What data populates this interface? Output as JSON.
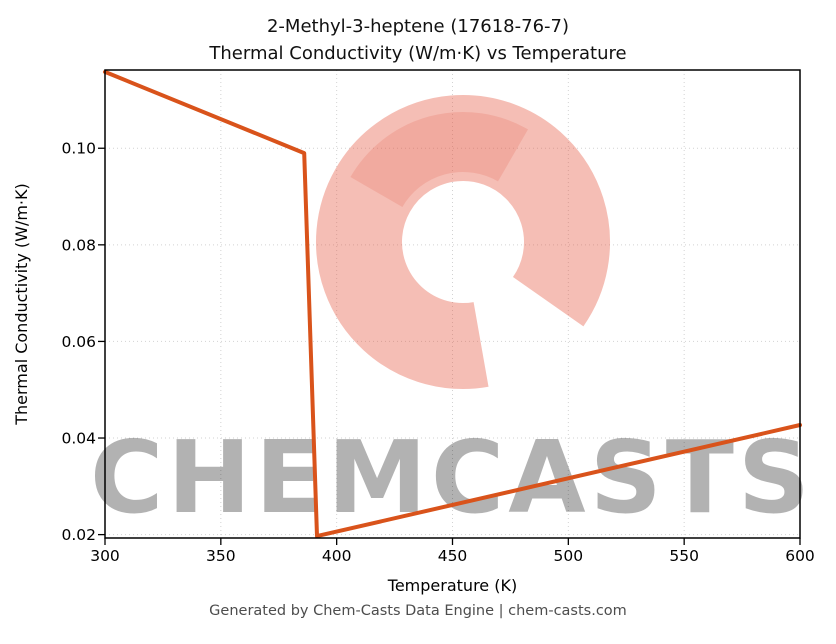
{
  "page": {
    "title_line1": "2-Methyl-3-heptene (17618-76-7)",
    "title_line2": "Thermal Conductivity (W/m·K) vs Temperature",
    "footer": "Generated by Chem-Casts Data Engine | chem-casts.com"
  },
  "watermark": {
    "text": "CHEMCASTS",
    "color": "#e4543c"
  },
  "colors": {
    "line": "#d9531b",
    "axis": "#000000",
    "grid": "#d2d2d2",
    "footer_text": "#4d4d4d"
  },
  "chart_data": {
    "type": "line",
    "title": "2-Methyl-3-heptene (17618-76-7) — Thermal Conductivity (W/m·K) vs Temperature",
    "xlabel": "Temperature (K)",
    "ylabel": "Thermal Conductivity (W/m·K)",
    "xlim": [
      300,
      600
    ],
    "ylim": [
      0.0193,
      0.1162
    ],
    "grid": true,
    "legend": "none",
    "xticks": {
      "values": [
        300,
        350,
        400,
        450,
        500,
        550,
        600
      ],
      "labels": [
        "300",
        "350",
        "400",
        "450",
        "500",
        "550",
        "600"
      ]
    },
    "yticks": {
      "values": [
        0.02,
        0.04,
        0.06,
        0.08,
        0.1
      ],
      "labels": [
        "0.02",
        "0.04",
        "0.06",
        "0.08",
        "0.10"
      ]
    },
    "series": [
      {
        "name": "Thermal Conductivity",
        "color": "#d9531b",
        "x": [
          300,
          386,
          391.5,
          600
        ],
        "y": [
          0.1158,
          0.099,
          0.0197,
          0.0427
        ]
      }
    ]
  }
}
